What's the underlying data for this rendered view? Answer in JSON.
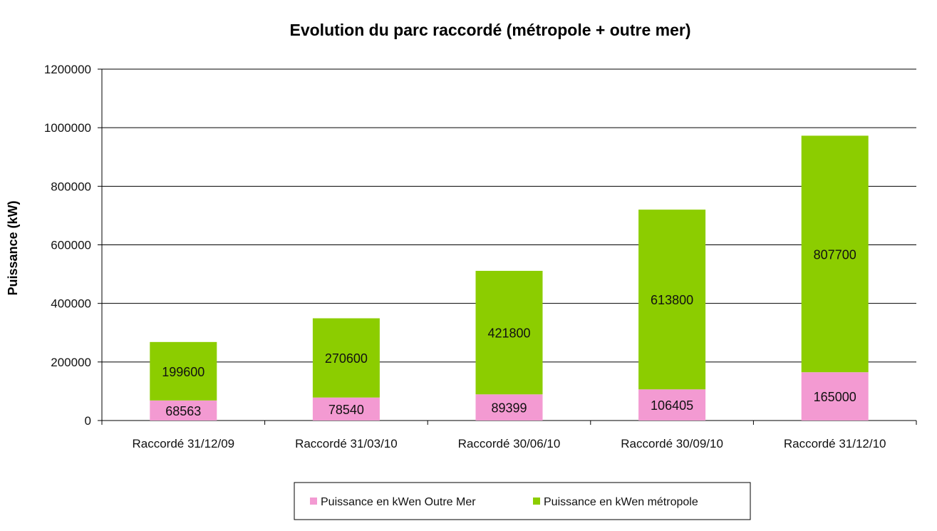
{
  "chart_data": {
    "type": "bar",
    "stacked": true,
    "title": "Evolution du parc raccordé (métropole + outre mer)",
    "xlabel": "",
    "ylabel": "Puissance (kW)",
    "ylim": [
      0,
      1200000
    ],
    "yticks": [
      0,
      200000,
      400000,
      600000,
      800000,
      1000000,
      1200000
    ],
    "ytick_labels": [
      "0",
      "200000",
      "400000",
      "600000",
      "800000",
      "1000000",
      "1200000"
    ],
    "grid": true,
    "legend_position": "bottom",
    "categories": [
      "Raccordé 31/12/09",
      "Raccordé 31/03/10",
      "Raccordé 30/06/10",
      "Raccordé 30/09/10",
      "Raccordé 31/12/10"
    ],
    "series": [
      {
        "name": "Puissance en kWen Outre Mer",
        "color": "#f39ad2",
        "values": [
          68563,
          78540,
          89399,
          106405,
          165000
        ],
        "labels": [
          "68563",
          "78540",
          "89399",
          "106405",
          "165000"
        ]
      },
      {
        "name": "Puissance en kWen métropole",
        "color": "#8ccd00",
        "values": [
          199600,
          270600,
          421800,
          613800,
          807700
        ],
        "labels": [
          "199600",
          "270600",
          "421800",
          "613800",
          "807700"
        ]
      }
    ]
  }
}
